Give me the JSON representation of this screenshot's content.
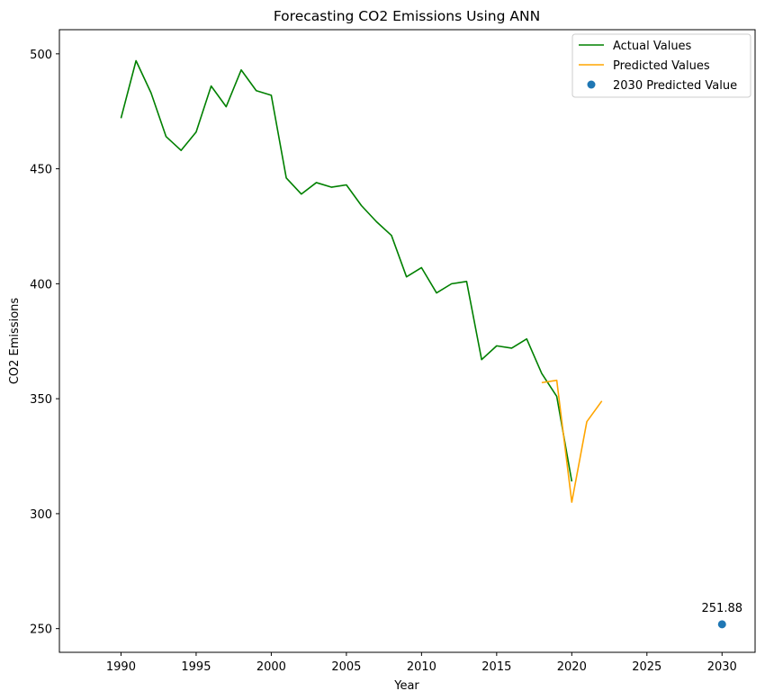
{
  "chart_data": {
    "type": "line",
    "title": "Forecasting CO2 Emissions Using ANN",
    "xlabel": "Year",
    "ylabel": "CO2 Emissions",
    "xlim": [
      1985.9,
      2032.2
    ],
    "ylim": [
      239.7,
      510.5
    ],
    "xticks": [
      1990,
      1995,
      2000,
      2005,
      2010,
      2015,
      2020,
      2025,
      2030
    ],
    "yticks": [
      250,
      300,
      350,
      400,
      450,
      500
    ],
    "grid": false,
    "legend_position": "top-right",
    "series": [
      {
        "name": "Actual Values",
        "color": "#008000",
        "kind": "line",
        "x": [
          1990,
          1991,
          1992,
          1993,
          1994,
          1995,
          1996,
          1997,
          1998,
          1999,
          2000,
          2001,
          2002,
          2003,
          2004,
          2005,
          2006,
          2007,
          2008,
          2009,
          2010,
          2011,
          2012,
          2013,
          2014,
          2015,
          2016,
          2017,
          2018,
          2019,
          2020
        ],
        "y": [
          472,
          497,
          483,
          464,
          458,
          466,
          486,
          477,
          493,
          484,
          482,
          446,
          439,
          444,
          442,
          443,
          434,
          427,
          421,
          403,
          407,
          396,
          400,
          401,
          367,
          373,
          372,
          376,
          361,
          351,
          314
        ]
      },
      {
        "name": "Predicted Values",
        "color": "#ffa500",
        "kind": "line",
        "x": [
          2018,
          2019,
          2020,
          2021,
          2022
        ],
        "y": [
          357,
          358,
          305,
          340,
          349
        ]
      },
      {
        "name": "2030 Predicted Value",
        "color": "#1f77b4",
        "kind": "point",
        "x": [
          2030
        ],
        "y": [
          251.88
        ]
      }
    ],
    "annotations": [
      {
        "text": "251.88",
        "x": 2030,
        "y": 251.88
      }
    ]
  }
}
